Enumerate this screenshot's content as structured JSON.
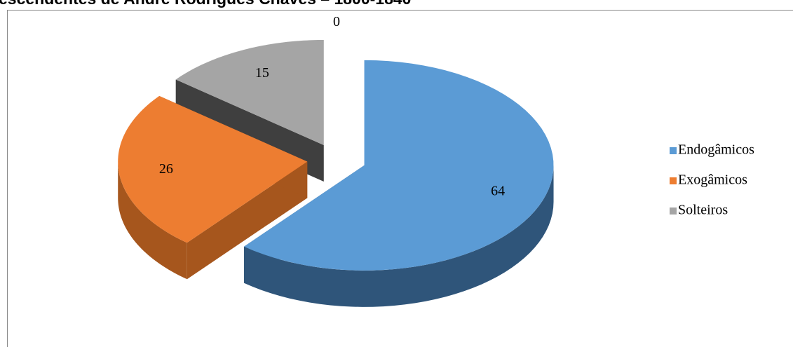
{
  "chart_data": {
    "type": "pie",
    "title": "escendentes de André Rodrigues Chaves – 1800-1840",
    "categories": [
      "Endogâmicos",
      "Exogâmicos",
      "Solteiros",
      null
    ],
    "values": [
      64,
      26,
      15,
      0
    ],
    "colors": [
      "#5b9bd5",
      "#ed7d31",
      "#a5a5a5",
      "#ffc000"
    ],
    "side_colors": [
      "#2f557a",
      "#a6561d",
      "#3f3f3f",
      "#b08500"
    ],
    "legend": "right",
    "exploded": true,
    "3d": true
  }
}
